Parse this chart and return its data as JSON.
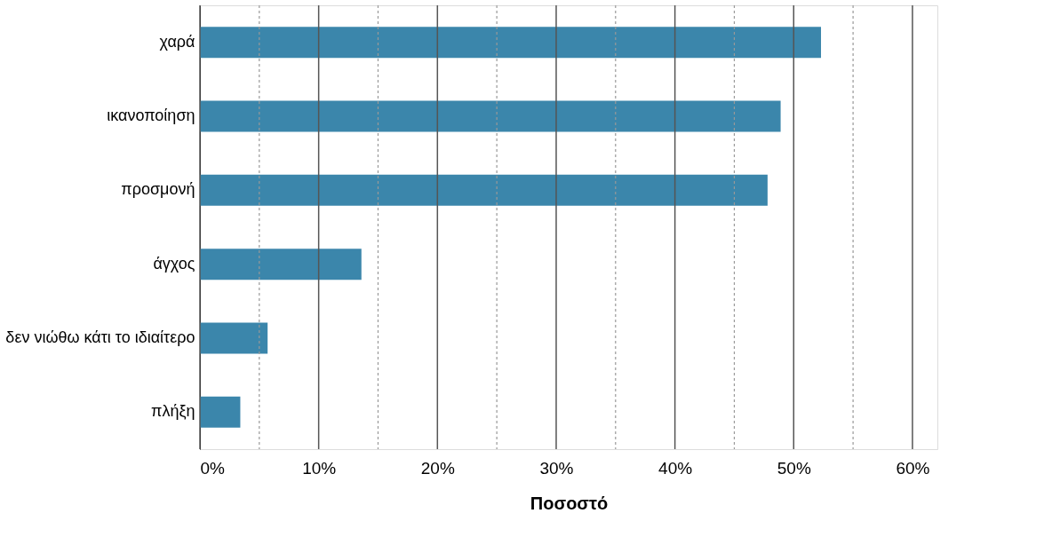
{
  "chart_data": {
    "type": "bar",
    "orientation": "horizontal",
    "xlabel": "Ποσοστό",
    "categories": [
      "χαρά",
      "ικανοποίηση",
      "προσμονή",
      "άγχος",
      "δεν νιώθω κάτι το ιδιαίτερο",
      "πλήξη"
    ],
    "values": [
      52.3,
      48.9,
      47.8,
      13.6,
      5.7,
      3.4
    ],
    "color": "#3b86ab",
    "xlim": [
      0,
      62.1
    ],
    "xticks": [
      {
        "value": 0,
        "label": "0%"
      },
      {
        "value": 5,
        "label": null
      },
      {
        "value": 10,
        "label": "10%"
      },
      {
        "value": 15,
        "label": null
      },
      {
        "value": 20,
        "label": "20%"
      },
      {
        "value": 25,
        "label": null
      },
      {
        "value": 30,
        "label": "30%"
      },
      {
        "value": 35,
        "label": null
      },
      {
        "value": 40,
        "label": "40%"
      },
      {
        "value": 45,
        "label": null
      },
      {
        "value": 50,
        "label": "50%"
      },
      {
        "value": 55,
        "label": null
      },
      {
        "value": 60,
        "label": "60%"
      }
    ],
    "grid": "x"
  }
}
